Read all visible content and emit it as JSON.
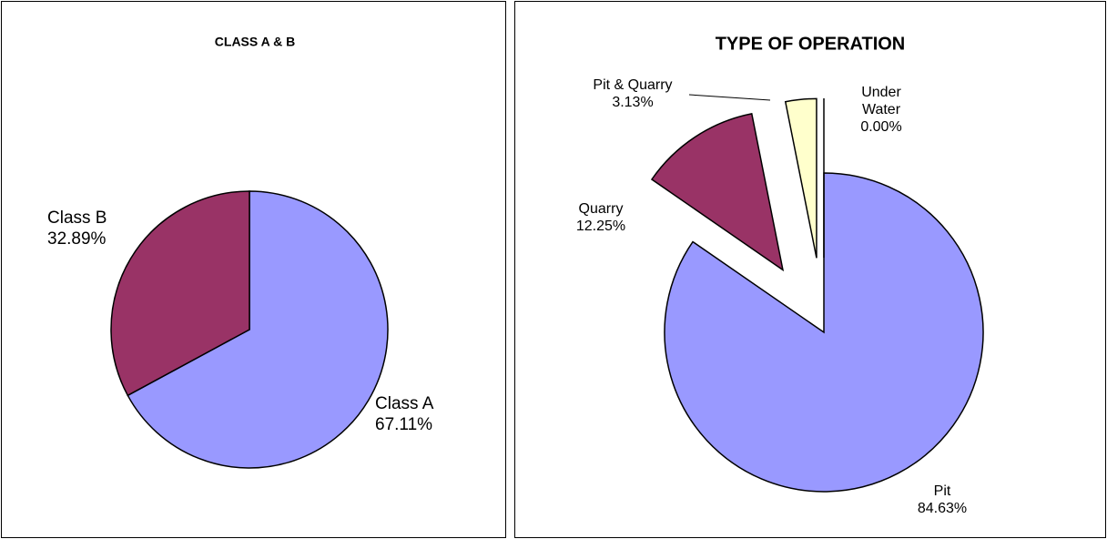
{
  "chart_data": [
    {
      "type": "pie",
      "title": "CLASS A & B",
      "categories": [
        "Class A",
        "Class B"
      ],
      "values": [
        67.11,
        32.89
      ],
      "value_labels": [
        "67.11%",
        "32.89%"
      ],
      "colors": [
        "#9999ff",
        "#993366"
      ]
    },
    {
      "type": "pie",
      "title": "TYPE OF OPERATION",
      "categories": [
        "Pit",
        "Quarry",
        "Pit & Quarry",
        "Under Water"
      ],
      "values": [
        84.63,
        12.25,
        3.13,
        0
      ],
      "value_labels": [
        "84.63%",
        "12.25%",
        "3.13%",
        "0.00%"
      ],
      "colors": [
        "#9999ff",
        "#993366",
        "#ffffcc",
        "#ffffcc"
      ]
    }
  ]
}
